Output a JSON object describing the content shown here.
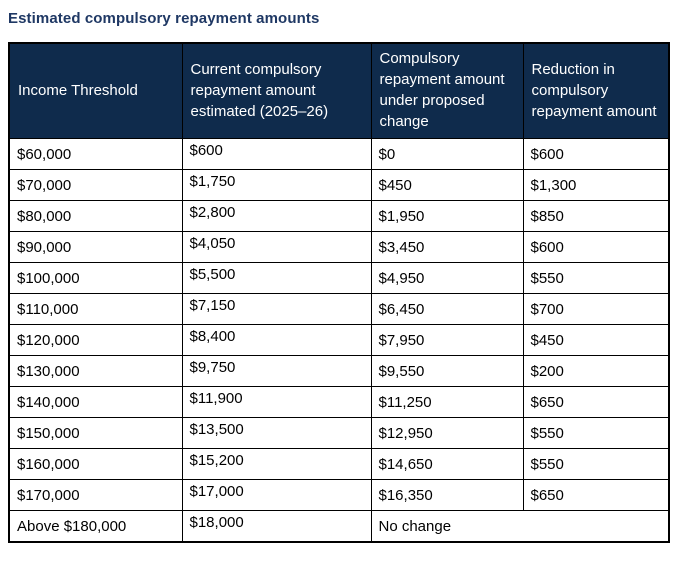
{
  "title": "Estimated compulsory repayment amounts",
  "table": {
    "columns": [
      "Income Threshold",
      "Current compulsory repayment amount estimated (2025–26)",
      "Compulsory repayment amount under proposed change",
      "Reduction in compulsory repayment amount"
    ],
    "rows": [
      {
        "cells": [
          "$60,000",
          "$600",
          "$0",
          "$600"
        ]
      },
      {
        "cells": [
          "$70,000",
          "$1,750",
          "$450",
          "$1,300"
        ]
      },
      {
        "cells": [
          "$80,000",
          "$2,800",
          "$1,950",
          "$850"
        ]
      },
      {
        "cells": [
          "$90,000",
          "$4,050",
          "$3,450",
          "$600"
        ]
      },
      {
        "cells": [
          "$100,000",
          "$5,500",
          "$4,950",
          "$550"
        ]
      },
      {
        "cells": [
          "$110,000",
          "$7,150",
          "$6,450",
          "$700"
        ]
      },
      {
        "cells": [
          "$120,000",
          "$8,400",
          "$7,950",
          "$450"
        ]
      },
      {
        "cells": [
          "$130,000",
          "$9,750",
          "$9,550",
          "$200"
        ]
      },
      {
        "cells": [
          "$140,000",
          "$11,900",
          "$11,250",
          "$650"
        ]
      },
      {
        "cells": [
          "$150,000",
          "$13,500",
          "$12,950",
          "$550"
        ]
      },
      {
        "cells": [
          "$160,000",
          "$15,200",
          "$14,650",
          "$550"
        ]
      },
      {
        "cells": [
          "$170,000",
          "$17,000",
          "$16,350",
          "$650"
        ]
      },
      {
        "cells": [
          "Above $180,000",
          "$18,000",
          "No change"
        ],
        "merged_last_two_columns": true
      }
    ],
    "colors": {
      "header_bg": "#0F2B4C",
      "header_text": "#FFFFFF",
      "title_text": "#1F3864",
      "body_text": "#000000",
      "border": "#000000"
    }
  }
}
